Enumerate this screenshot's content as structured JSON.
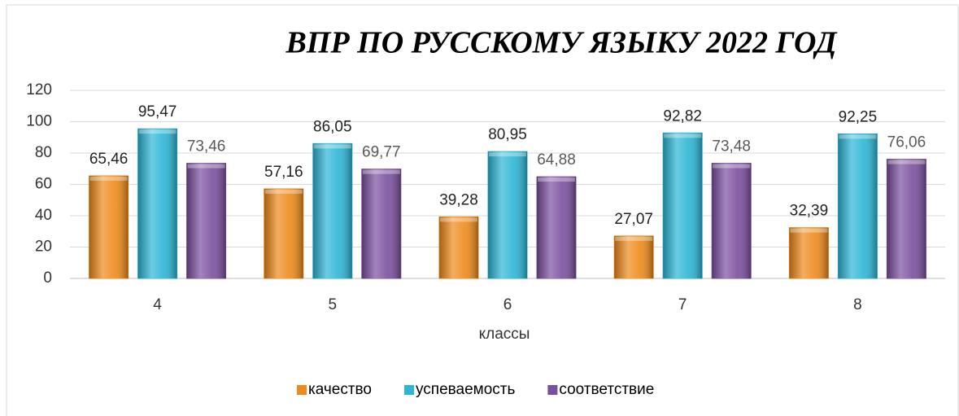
{
  "chart_data": {
    "type": "bar",
    "title": "ВПР ПО РУССКОМУ ЯЗЫКУ 2022 ГОД",
    "x_label": "классы",
    "categories": [
      "4",
      "5",
      "6",
      "7",
      "8"
    ],
    "series": [
      {
        "name": "качество",
        "color": "#ef8a1a",
        "values": [
          65.46,
          57.16,
          39.28,
          27.07,
          32.39
        ],
        "value_labels": [
          "65,46",
          "57,16",
          "39,28",
          "27,07",
          "32,39"
        ]
      },
      {
        "name": "успеваемость",
        "color": "#2bb6d6",
        "values": [
          95.47,
          86.05,
          80.95,
          92.82,
          92.25
        ],
        "value_labels": [
          "95,47",
          "86,05",
          "80,95",
          "92,82",
          "92,25"
        ]
      },
      {
        "name": "соответствие",
        "color": "#7b4f9f",
        "values": [
          73.46,
          69.77,
          64.88,
          73.48,
          76.06
        ],
        "value_labels": [
          "73,46",
          "69,77",
          "64,88",
          "73,48",
          "76,06"
        ]
      }
    ],
    "ylim": [
      0,
      120
    ],
    "yticks": [
      0,
      20,
      40,
      60,
      80,
      100,
      120
    ],
    "grid": true,
    "legend": "bottom"
  }
}
